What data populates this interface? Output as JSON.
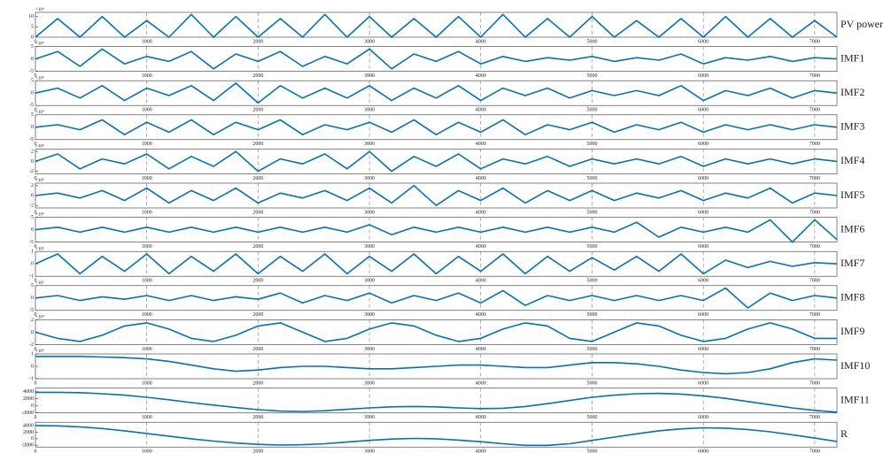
{
  "chart_data": [
    {
      "type": "line",
      "label": "PV power",
      "y_exponent": "×10⁴",
      "color": "#0072bd",
      "grid": true,
      "xlim": [
        0,
        7200
      ],
      "xticks": [
        0,
        1000,
        2000,
        3000,
        4000,
        5000,
        6000,
        7000
      ],
      "ylim": [
        0,
        12
      ],
      "yticks": [
        0,
        5,
        10
      ],
      "x": [
        0,
        200,
        400,
        600,
        800,
        1000,
        1200,
        1400,
        1600,
        1800,
        2000,
        2200,
        2400,
        2600,
        2800,
        3000,
        3200,
        3400,
        3600,
        3800,
        4000,
        4200,
        4400,
        4600,
        4800,
        5000,
        5200,
        5400,
        5600,
        5800,
        6000,
        6200,
        6400,
        6600,
        6800,
        7000,
        7200
      ],
      "values": [
        0,
        9,
        0,
        10,
        0,
        8,
        0,
        11,
        0,
        10,
        0,
        9,
        0,
        11,
        0,
        10,
        0,
        9,
        0,
        10,
        0,
        11,
        0,
        9,
        0,
        10,
        0,
        8,
        0,
        9,
        0,
        10,
        0,
        9,
        0,
        8,
        0
      ]
    },
    {
      "type": "line",
      "label": "IMF1",
      "y_exponent": "×10⁴",
      "color": "#0072bd",
      "grid": true,
      "xlim": [
        0,
        7200
      ],
      "xticks": [
        0,
        1000,
        2000,
        3000,
        4000,
        5000,
        6000,
        7000
      ],
      "ylim": [
        -5,
        5
      ],
      "yticks": [
        -5,
        0,
        5
      ],
      "x": [
        0,
        200,
        400,
        600,
        800,
        1000,
        1200,
        1400,
        1600,
        1800,
        2000,
        2200,
        2400,
        2600,
        2800,
        3000,
        3200,
        3400,
        3600,
        3800,
        4000,
        4200,
        4400,
        4600,
        4800,
        5000,
        5200,
        5400,
        5600,
        5800,
        6000,
        6200,
        6400,
        6600,
        6800,
        7000,
        7200
      ],
      "values": [
        0,
        3,
        -3,
        4,
        -2,
        1,
        -1,
        3,
        -4,
        2,
        -1,
        3,
        -3,
        1,
        -2,
        4,
        -4,
        2,
        -1,
        3,
        -2,
        1,
        -1,
        0.5,
        -0.5,
        1,
        -1,
        0.5,
        -0.5,
        2,
        -2,
        0.5,
        -0.5,
        1,
        -1,
        0.5,
        0
      ]
    },
    {
      "type": "line",
      "label": "IMF2",
      "y_exponent": "×10⁴",
      "color": "#0072bd",
      "grid": true,
      "xlim": [
        0,
        7200
      ],
      "xticks": [
        0,
        1000,
        2000,
        3000,
        4000,
        5000,
        6000,
        7000
      ],
      "ylim": [
        -5,
        5
      ],
      "yticks": [
        -5,
        0,
        5
      ],
      "x": [
        0,
        200,
        400,
        600,
        800,
        1000,
        1200,
        1400,
        1600,
        1800,
        2000,
        2200,
        2400,
        2600,
        2800,
        3000,
        3200,
        3400,
        3600,
        3800,
        4000,
        4200,
        4400,
        4600,
        4800,
        5000,
        5200,
        5400,
        5600,
        5800,
        6000,
        6200,
        6400,
        6600,
        6800,
        7000,
        7200
      ],
      "values": [
        0,
        2,
        -2,
        3,
        -3,
        2,
        -1,
        3,
        -3,
        4,
        -4,
        3,
        -2,
        2,
        -2,
        3,
        -3,
        2,
        -2,
        3,
        -3,
        2,
        -1,
        2,
        -2,
        1,
        -1,
        1,
        -1,
        3,
        -3,
        1,
        -1,
        2,
        -2,
        1,
        0
      ]
    },
    {
      "type": "line",
      "label": "IMF3",
      "y_exponent": "×10⁴",
      "color": "#0072bd",
      "grid": true,
      "xlim": [
        0,
        7200
      ],
      "xticks": [
        0,
        1000,
        2000,
        3000,
        4000,
        5000,
        6000,
        7000
      ],
      "ylim": [
        -5,
        5
      ],
      "yticks": [
        -5,
        0,
        5
      ],
      "x": [
        0,
        200,
        400,
        600,
        800,
        1000,
        1200,
        1400,
        1600,
        1800,
        2000,
        2200,
        2400,
        2600,
        2800,
        3000,
        3200,
        3400,
        3600,
        3800,
        4000,
        4200,
        4400,
        4600,
        4800,
        5000,
        5200,
        5400,
        5600,
        5800,
        6000,
        6200,
        6400,
        6600,
        6800,
        7000,
        7200
      ],
      "values": [
        0,
        1,
        -1,
        3,
        -3,
        2,
        -2,
        3,
        -3,
        2,
        -1,
        3,
        -3,
        1,
        -1,
        2,
        -2,
        3,
        -3,
        2,
        -2,
        3,
        -3,
        1,
        -1,
        2,
        -2,
        1,
        -1,
        2,
        -2,
        1,
        -1,
        1,
        -1,
        1,
        0
      ]
    },
    {
      "type": "line",
      "label": "IMF4",
      "y_exponent": "×10⁴",
      "color": "#0072bd",
      "grid": true,
      "xlim": [
        0,
        7200
      ],
      "xticks": [
        0,
        1000,
        2000,
        3000,
        4000,
        5000,
        6000,
        7000
      ],
      "ylim": [
        -2.5,
        2.5
      ],
      "yticks": [
        -2,
        0,
        2
      ],
      "x": [
        0,
        200,
        400,
        600,
        800,
        1000,
        1200,
        1400,
        1600,
        1800,
        2000,
        2200,
        2400,
        2600,
        2800,
        3000,
        3200,
        3400,
        3600,
        3800,
        4000,
        4200,
        4400,
        4600,
        4800,
        5000,
        5200,
        5400,
        5600,
        5800,
        6000,
        6200,
        6400,
        6600,
        6800,
        7000,
        7200
      ],
      "values": [
        0,
        1.5,
        -1.5,
        0.5,
        -0.5,
        1.5,
        -1.5,
        1,
        -1,
        2,
        -2,
        0.5,
        -0.5,
        1.5,
        -1.5,
        2,
        -2,
        1,
        -1,
        1.5,
        -1.5,
        0.5,
        -0.5,
        1,
        -1,
        0.5,
        -0.5,
        0.5,
        -0.5,
        1,
        -1,
        0.5,
        -0.5,
        0.5,
        -0.5,
        0.5,
        0
      ]
    },
    {
      "type": "line",
      "label": "IMF5",
      "y_exponent": "×10⁴",
      "color": "#0072bd",
      "grid": true,
      "xlim": [
        0,
        7200
      ],
      "xticks": [
        0,
        1000,
        2000,
        3000,
        4000,
        5000,
        6000,
        7000
      ],
      "ylim": [
        -2.5,
        2.5
      ],
      "yticks": [
        -2,
        0,
        2
      ],
      "x": [
        0,
        200,
        400,
        600,
        800,
        1000,
        1200,
        1400,
        1600,
        1800,
        2000,
        2200,
        2400,
        2600,
        2800,
        3000,
        3200,
        3400,
        3600,
        3800,
        4000,
        4200,
        4400,
        4600,
        4800,
        5000,
        5200,
        5400,
        5600,
        5800,
        6000,
        6200,
        6400,
        6600,
        6800,
        7000,
        7200
      ],
      "values": [
        0,
        0.5,
        -0.5,
        1,
        -1,
        1.5,
        -1.5,
        1,
        -1,
        1.5,
        -1.5,
        0.5,
        -0.5,
        1,
        -1,
        1.5,
        -1.5,
        2,
        -2,
        1,
        -1,
        1.5,
        -1.5,
        1,
        -1,
        1,
        -1,
        0.5,
        -0.5,
        1,
        -1,
        0.5,
        -0.5,
        1.5,
        -1.5,
        0.5,
        0
      ]
    },
    {
      "type": "line",
      "label": "IMF6",
      "y_exponent": "×10⁴",
      "color": "#0072bd",
      "grid": true,
      "xlim": [
        0,
        7200
      ],
      "xticks": [
        0,
        1000,
        2000,
        3000,
        4000,
        5000,
        6000,
        7000
      ],
      "ylim": [
        -5,
        5
      ],
      "yticks": [
        -5,
        0,
        5
      ],
      "x": [
        0,
        200,
        400,
        600,
        800,
        1000,
        1200,
        1400,
        1600,
        1800,
        2000,
        2200,
        2400,
        2600,
        2800,
        3000,
        3200,
        3400,
        3600,
        3800,
        4000,
        4200,
        4400,
        4600,
        4800,
        5000,
        5200,
        5400,
        5600,
        5800,
        6000,
        6200,
        6400,
        6600,
        6800,
        7000,
        7200
      ],
      "values": [
        0,
        1,
        -1,
        1,
        -1,
        1,
        -1,
        1,
        -1,
        1,
        -1,
        1,
        -1,
        1,
        -1,
        2,
        -2,
        1,
        -1,
        1,
        -1,
        1,
        -1,
        1,
        -1,
        1,
        -1,
        3,
        -3,
        1,
        -1,
        1,
        -1,
        4,
        -5,
        4,
        -4
      ]
    },
    {
      "type": "line",
      "label": "IMF7",
      "y_exponent": "×10⁴",
      "color": "#0072bd",
      "grid": true,
      "xlim": [
        0,
        7200
      ],
      "xticks": [
        0,
        1000,
        2000,
        3000,
        4000,
        5000,
        6000,
        7000
      ],
      "ylim": [
        -1,
        1
      ],
      "yticks": [
        -1,
        0,
        1
      ],
      "x": [
        0,
        200,
        400,
        600,
        800,
        1000,
        1200,
        1400,
        1600,
        1800,
        2000,
        2200,
        2400,
        2600,
        2800,
        3000,
        3200,
        3400,
        3600,
        3800,
        4000,
        4200,
        4400,
        4600,
        4800,
        5000,
        5200,
        5400,
        5600,
        5800,
        6000,
        6200,
        6400,
        6600,
        6800,
        7000,
        7200
      ],
      "values": [
        0,
        0.8,
        -0.8,
        0.6,
        -0.6,
        0.8,
        -0.8,
        0.6,
        -0.6,
        0.8,
        -0.8,
        0.6,
        -0.6,
        0.8,
        -0.8,
        0.6,
        -0.6,
        0.8,
        -0.8,
        0.6,
        -0.6,
        0.8,
        -0.8,
        0.6,
        -0.6,
        0.5,
        -0.5,
        0.6,
        -0.6,
        0.8,
        -0.8,
        0.3,
        -0.3,
        0.2,
        -0.2,
        0.1,
        0
      ]
    },
    {
      "type": "line",
      "label": "IMF8",
      "y_exponent": "×10⁴",
      "color": "#0072bd",
      "grid": true,
      "xlim": [
        0,
        7200
      ],
      "xticks": [
        0,
        1000,
        2000,
        3000,
        4000,
        5000,
        6000,
        7000
      ],
      "ylim": [
        -5,
        5
      ],
      "yticks": [
        -5,
        0,
        5
      ],
      "x": [
        0,
        200,
        400,
        600,
        800,
        1000,
        1200,
        1400,
        1600,
        1800,
        2000,
        2200,
        2400,
        2600,
        2800,
        3000,
        3200,
        3400,
        3600,
        3800,
        4000,
        4200,
        4400,
        4600,
        4800,
        5000,
        5200,
        5400,
        5600,
        5800,
        6000,
        6200,
        6400,
        6600,
        6800,
        7000,
        7200
      ],
      "values": [
        0,
        1,
        -1,
        0.5,
        -0.5,
        1,
        -1,
        1,
        -1,
        0.5,
        -0.5,
        2,
        -2,
        1,
        -1,
        2,
        -2,
        1,
        -1,
        2,
        -2,
        3,
        -3,
        1,
        -1,
        1,
        -1,
        1,
        -1,
        1,
        -1,
        4,
        -4,
        2,
        -1,
        1,
        0
      ]
    },
    {
      "type": "line",
      "label": "IMF9",
      "y_exponent": "×10⁴",
      "color": "#0072bd",
      "grid": true,
      "xlim": [
        0,
        7200
      ],
      "xticks": [
        0,
        1000,
        2000,
        3000,
        4000,
        5000,
        6000,
        7000
      ],
      "ylim": [
        -2,
        2
      ],
      "yticks": [
        -2,
        0,
        2
      ],
      "x": [
        0,
        200,
        400,
        600,
        800,
        1000,
        1200,
        1400,
        1600,
        1800,
        2000,
        2200,
        2400,
        2600,
        2800,
        3000,
        3200,
        3400,
        3600,
        3800,
        4000,
        4200,
        4400,
        4600,
        4800,
        5000,
        5200,
        5400,
        5600,
        5800,
        6000,
        6200,
        6400,
        6600,
        6800,
        7000,
        7200
      ],
      "values": [
        0,
        -1,
        -1.5,
        -0.5,
        1,
        1.5,
        0.5,
        -1,
        -1.5,
        -0.5,
        1,
        1.5,
        0,
        -1.5,
        -1,
        0.5,
        1.5,
        1,
        -0.5,
        -1.5,
        -1,
        0.5,
        1.5,
        1,
        -1,
        -1.5,
        0,
        1.5,
        1,
        -0.5,
        -1.5,
        -1,
        0.5,
        1.5,
        0.5,
        -1,
        -1
      ]
    },
    {
      "type": "line",
      "label": "IMF10",
      "y_exponent": "×10⁴",
      "color": "#0072bd",
      "grid": true,
      "xlim": [
        0,
        7200
      ],
      "xticks": [
        0,
        1000,
        2000,
        3000,
        4000,
        5000,
        6000,
        7000
      ],
      "ylim": [
        -1,
        1
      ],
      "yticks": [
        -1,
        0,
        1
      ],
      "x": [
        0,
        200,
        400,
        600,
        800,
        1000,
        1200,
        1400,
        1600,
        1800,
        2000,
        2200,
        2400,
        2600,
        2800,
        3000,
        3200,
        3400,
        3600,
        3800,
        4000,
        4200,
        4400,
        4600,
        4800,
        5000,
        5200,
        5400,
        5600,
        5800,
        6000,
        6200,
        6400,
        6600,
        6800,
        7000,
        7200
      ],
      "values": [
        0.8,
        0.8,
        0.8,
        0.75,
        0.7,
        0.6,
        0.4,
        0.1,
        -0.2,
        -0.4,
        -0.3,
        -0.1,
        0,
        0,
        -0.1,
        -0.2,
        -0.2,
        -0.1,
        0,
        0.1,
        0.1,
        0,
        -0.1,
        -0.1,
        0.1,
        0.3,
        0.3,
        0.2,
        0,
        -0.3,
        -0.5,
        -0.6,
        -0.5,
        -0.2,
        0.3,
        0.6,
        0.5
      ]
    },
    {
      "type": "line",
      "label": "IMF11",
      "color": "#0072bd",
      "grid": true,
      "xlim": [
        0,
        7200
      ],
      "xticks": [
        0,
        1000,
        2000,
        3000,
        4000,
        5000,
        6000,
        7000
      ],
      "ylim": [
        -2000,
        5000
      ],
      "yticks": [
        -2000,
        0,
        2000,
        4000
      ],
      "x": [
        0,
        200,
        400,
        600,
        800,
        1000,
        1200,
        1400,
        1600,
        1800,
        2000,
        2200,
        2400,
        2600,
        2800,
        3000,
        3200,
        3400,
        3600,
        3800,
        4000,
        4200,
        4400,
        4600,
        4800,
        5000,
        5200,
        5400,
        5600,
        5800,
        6000,
        6200,
        6400,
        6600,
        6800,
        7000,
        7200
      ],
      "values": [
        3800,
        3800,
        3700,
        3400,
        3000,
        2400,
        1700,
        900,
        200,
        -500,
        -1100,
        -1500,
        -1600,
        -1400,
        -1000,
        -600,
        -300,
        -200,
        -300,
        -600,
        -800,
        -700,
        -200,
        600,
        1500,
        2400,
        3000,
        3400,
        3500,
        3300,
        2800,
        2100,
        1200,
        300,
        -600,
        -1300,
        -1800
      ]
    },
    {
      "type": "line",
      "label": "R",
      "color": "#0072bd",
      "grid": true,
      "xlim": [
        0,
        7200
      ],
      "xticks": [
        0,
        1000,
        2000,
        3000,
        4000,
        5000,
        6000,
        7000
      ],
      "ylim": [
        -2500,
        5000
      ],
      "yticks": [
        -2000,
        0,
        2000,
        4000
      ],
      "x": [
        0,
        200,
        400,
        600,
        800,
        1000,
        1200,
        1400,
        1600,
        1800,
        2000,
        2200,
        2400,
        2600,
        2800,
        3000,
        3200,
        3400,
        3600,
        3800,
        4000,
        4200,
        4400,
        4600,
        4800,
        5000,
        5200,
        5400,
        5600,
        5800,
        6000,
        6200,
        6400,
        6600,
        6800,
        7000,
        7200
      ],
      "values": [
        4000,
        3900,
        3600,
        3100,
        2400,
        1600,
        800,
        0,
        -700,
        -1300,
        -1700,
        -1900,
        -1800,
        -1500,
        -1000,
        -500,
        -100,
        100,
        0,
        -400,
        -900,
        -1500,
        -2000,
        -2000,
        -1500,
        -500,
        500,
        1500,
        2400,
        3000,
        3300,
        3200,
        2800,
        2100,
        1200,
        200,
        -800
      ]
    }
  ]
}
